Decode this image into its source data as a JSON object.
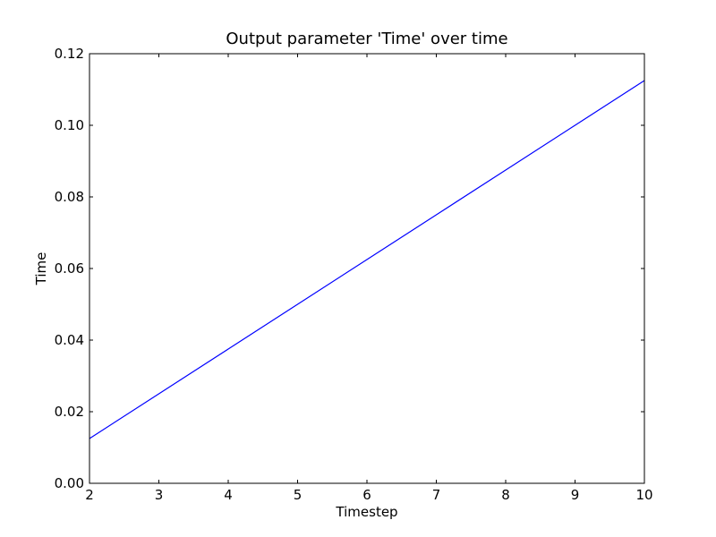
{
  "chart_data": {
    "type": "line",
    "title": "Output parameter 'Time' over time",
    "xlabel": "Timestep",
    "ylabel": "Time",
    "xlim": [
      2,
      10
    ],
    "ylim": [
      0,
      0.12
    ],
    "x_ticks": [
      2,
      3,
      4,
      5,
      6,
      7,
      8,
      9,
      10
    ],
    "x_tick_labels": [
      "2",
      "3",
      "4",
      "5",
      "6",
      "7",
      "8",
      "9",
      "10"
    ],
    "y_ticks": [
      0,
      0.02,
      0.04,
      0.06,
      0.08,
      0.1,
      0.12
    ],
    "y_tick_labels": [
      "0.00",
      "0.02",
      "0.04",
      "0.06",
      "0.08",
      "0.10",
      "0.12"
    ],
    "grid": false,
    "series": [
      {
        "name": "Time",
        "color": "#0000ff",
        "x": [
          2,
          3,
          4,
          5,
          6,
          7,
          8,
          9,
          10
        ],
        "values": [
          0.0125,
          0.025,
          0.0375,
          0.05,
          0.0625,
          0.075,
          0.0875,
          0.1,
          0.1125
        ]
      }
    ]
  }
}
